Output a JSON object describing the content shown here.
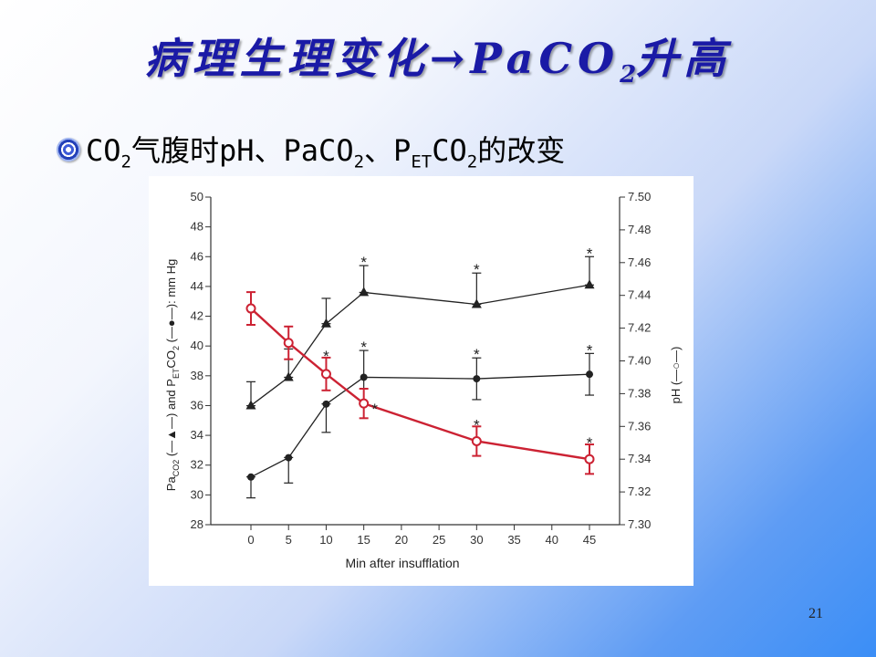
{
  "slide": {
    "title_main": "病理生理变化→PaCO",
    "title_sub": "2",
    "title_tail": "升高",
    "bullet_parts": {
      "p1": "CO",
      "s1": "2",
      "p2": "气腹时pH、PaCO",
      "s2": "2",
      "p3": "、P",
      "s3": "ET",
      "p4": "CO",
      "s4": "2",
      "p5": "的改变"
    },
    "page_number": "21"
  },
  "chart_data": {
    "type": "line",
    "x": [
      0,
      5,
      10,
      15,
      30,
      45
    ],
    "xticks": [
      0,
      5,
      10,
      15,
      20,
      25,
      30,
      35,
      40,
      45
    ],
    "xlabel": "Min after insufflation",
    "ylabel_left_parts": {
      "a": "Pa",
      "a_sub": "CO2",
      "b": " (—▲—) and P",
      "b_sub": "ET",
      "c": "CO",
      "c_sub": "2",
      "d": " (—●—): mm Hg"
    },
    "ylabel_right": "pH (—○—)",
    "ylim_left": [
      28,
      50
    ],
    "yticks_left": [
      28,
      30,
      32,
      34,
      36,
      38,
      40,
      42,
      44,
      46,
      48,
      50
    ],
    "ylim_right": [
      7.3,
      7.5
    ],
    "yticks_right": [
      "7.30",
      "7.32",
      "7.34",
      "7.36",
      "7.38",
      "7.40",
      "7.42",
      "7.44",
      "7.46",
      "7.48",
      "7.50"
    ],
    "series": [
      {
        "axis": "left",
        "marker": "triangle",
        "color": "#222222",
        "values": [
          36.0,
          37.9,
          41.5,
          43.6,
          42.8,
          44.1
        ],
        "errors": [
          1.6,
          1.9,
          1.7,
          1.8,
          2.1,
          1.9
        ],
        "significant": [
          false,
          false,
          false,
          true,
          true,
          true
        ]
      },
      {
        "axis": "left",
        "marker": "dot",
        "color": "#222222",
        "values": [
          31.2,
          32.5,
          36.1,
          37.9,
          37.8,
          38.1
        ],
        "errors": [
          1.4,
          1.7,
          1.9,
          1.8,
          1.4,
          1.4
        ],
        "significant": [
          false,
          false,
          false,
          true,
          true,
          true
        ]
      },
      {
        "axis": "right",
        "marker": "circle-open",
        "color": "#cc2233",
        "values": [
          7.432,
          7.411,
          7.392,
          7.374,
          7.351,
          7.34
        ],
        "errors": [
          0.01,
          0.01,
          0.01,
          0.009,
          0.009,
          0.009
        ],
        "significant": [
          false,
          false,
          true,
          true,
          true,
          true
        ]
      }
    ],
    "significance_marker": "*"
  }
}
